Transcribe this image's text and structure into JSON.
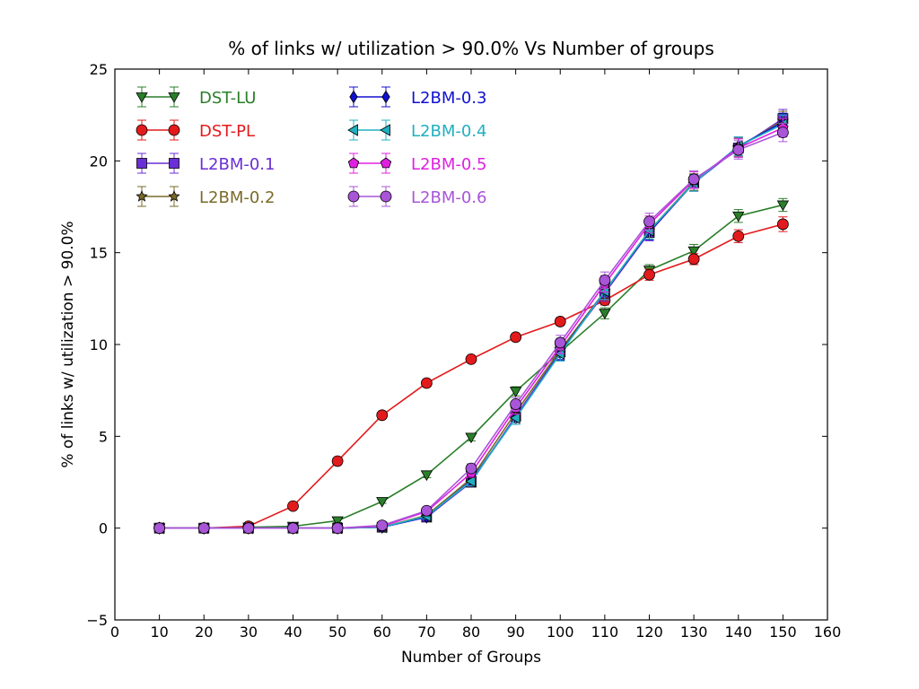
{
  "chart_data": {
    "type": "line",
    "title": "% of links w/ utilization > 90.0% Vs Number of groups",
    "xlabel": "Number of Groups",
    "ylabel": "% of links w/ utilization > 90.0%",
    "xlim": [
      0,
      160
    ],
    "ylim": [
      -5,
      25
    ],
    "xticks": [
      0,
      10,
      20,
      30,
      40,
      50,
      60,
      70,
      80,
      90,
      100,
      110,
      120,
      130,
      140,
      150,
      160
    ],
    "yticks": [
      -5,
      0,
      5,
      10,
      15,
      20,
      25
    ],
    "xtick_labels": [
      "0",
      "10",
      "20",
      "30",
      "40",
      "50",
      "60",
      "70",
      "80",
      "90",
      "100",
      "110",
      "120",
      "130",
      "140",
      "150",
      "160"
    ],
    "ytick_labels": [
      "−5",
      "0",
      "5",
      "10",
      "15",
      "20",
      "25"
    ],
    "grid": false,
    "legend_position": "top-left",
    "x": [
      10,
      20,
      30,
      40,
      50,
      60,
      70,
      80,
      90,
      100,
      110,
      120,
      130,
      140,
      150
    ],
    "series": [
      {
        "name": "DST-LU",
        "color": "#2a7f2a",
        "marker": "triangle-down",
        "values": [
          0,
          0,
          0.05,
          0.1,
          0.4,
          1.45,
          2.9,
          4.95,
          7.45,
          9.6,
          11.7,
          14.05,
          15.1,
          17.0,
          17.6
        ],
        "errors": [
          0.05,
          0.05,
          0.05,
          0.05,
          0.1,
          0.1,
          0.15,
          0.2,
          0.25,
          0.3,
          0.3,
          0.3,
          0.35,
          0.35,
          0.35
        ]
      },
      {
        "name": "DST-PL",
        "color": "#e31a1c",
        "marker": "circle",
        "values": [
          0,
          0,
          0.1,
          1.2,
          3.65,
          6.15,
          7.9,
          9.2,
          10.4,
          11.25,
          12.4,
          13.8,
          14.65,
          15.9,
          16.55
        ],
        "errors": [
          0.05,
          0.05,
          0.05,
          0.1,
          0.1,
          0.15,
          0.15,
          0.15,
          0.15,
          0.2,
          0.25,
          0.3,
          0.3,
          0.35,
          0.4
        ]
      },
      {
        "name": "L2BM-0.1",
        "color": "#6a2fd6",
        "marker": "square",
        "values": [
          0,
          0,
          0,
          0,
          0,
          0.05,
          0.6,
          2.5,
          6.1,
          9.6,
          12.8,
          16.1,
          18.8,
          20.7,
          22.3
        ],
        "errors": [
          0.05,
          0.05,
          0.05,
          0.05,
          0.05,
          0.05,
          0.15,
          0.25,
          0.35,
          0.4,
          0.45,
          0.45,
          0.45,
          0.5,
          0.5
        ]
      },
      {
        "name": "L2BM-0.2",
        "color": "#7a6b2a",
        "marker": "star",
        "values": [
          0,
          0,
          0,
          0,
          0,
          0.05,
          0.7,
          2.7,
          6.3,
          9.7,
          12.9,
          16.2,
          18.85,
          20.75,
          22.2
        ],
        "errors": [
          0.05,
          0.05,
          0.05,
          0.05,
          0.05,
          0.05,
          0.15,
          0.25,
          0.35,
          0.4,
          0.45,
          0.45,
          0.45,
          0.5,
          0.5
        ]
      },
      {
        "name": "L2BM-0.3",
        "color": "#1010d0",
        "marker": "diamond",
        "values": [
          0,
          0,
          0,
          0,
          0,
          0.05,
          0.6,
          2.6,
          6.0,
          9.55,
          12.9,
          16.15,
          18.8,
          20.8,
          22.1
        ],
        "errors": [
          0.05,
          0.05,
          0.05,
          0.05,
          0.05,
          0.05,
          0.15,
          0.25,
          0.35,
          0.4,
          0.45,
          0.45,
          0.45,
          0.5,
          0.5
        ]
      },
      {
        "name": "L2BM-0.4",
        "color": "#20b0c0",
        "marker": "triangle-left",
        "values": [
          0,
          0,
          0,
          0,
          0,
          0.05,
          0.65,
          2.55,
          6.0,
          9.5,
          12.9,
          16.2,
          18.8,
          20.8,
          22.0
        ],
        "errors": [
          0.05,
          0.05,
          0.05,
          0.05,
          0.05,
          0.05,
          0.15,
          0.25,
          0.35,
          0.4,
          0.45,
          0.45,
          0.45,
          0.5,
          0.5
        ]
      },
      {
        "name": "L2BM-0.5",
        "color": "#e020e0",
        "marker": "pentagon",
        "values": [
          0,
          0,
          0,
          0,
          0,
          0.1,
          0.9,
          3.0,
          6.55,
          9.9,
          13.3,
          16.55,
          18.95,
          20.7,
          21.8
        ],
        "errors": [
          0.05,
          0.05,
          0.05,
          0.05,
          0.05,
          0.05,
          0.15,
          0.25,
          0.35,
          0.4,
          0.45,
          0.45,
          0.45,
          0.5,
          0.5
        ]
      },
      {
        "name": "L2BM-0.6",
        "color": "#a855d8",
        "marker": "circle",
        "values": [
          0,
          0,
          0,
          0,
          0,
          0.15,
          0.95,
          3.25,
          6.75,
          10.1,
          13.5,
          16.7,
          19.0,
          20.6,
          21.55
        ],
        "errors": [
          0.05,
          0.05,
          0.05,
          0.05,
          0.05,
          0.05,
          0.15,
          0.25,
          0.35,
          0.4,
          0.45,
          0.45,
          0.45,
          0.5,
          0.5
        ]
      }
    ]
  }
}
